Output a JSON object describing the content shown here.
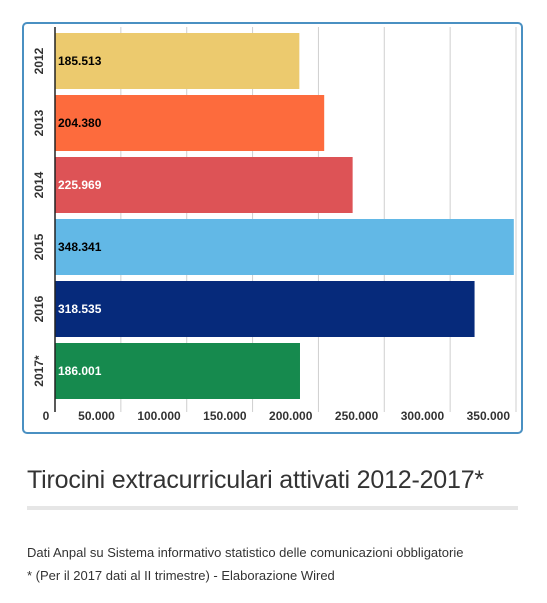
{
  "chart_data": {
    "type": "bar",
    "orientation": "horizontal",
    "categories": [
      "2012",
      "2013",
      "2014",
      "2015",
      "2016",
      "2017*"
    ],
    "values": [
      185513,
      204380,
      225969,
      348341,
      318535,
      186001
    ],
    "value_labels": [
      "185.513",
      "204.380",
      "225.969",
      "348.341",
      "318.535",
      "186.001"
    ],
    "bar_colors": [
      "#ecca6e",
      "#fd6b3d",
      "#dd5356",
      "#62b8e6",
      "#062a7b",
      "#168a4e"
    ],
    "label_colors": [
      "#000000",
      "#000000",
      "#ffffff",
      "#000000",
      "#ffffff",
      "#ffffff"
    ],
    "xlim": [
      0,
      350000
    ],
    "x_ticks": [
      0,
      50000,
      100000,
      150000,
      200000,
      250000,
      300000,
      350000
    ],
    "x_tick_labels": [
      "0",
      "50.000",
      "100.000",
      "150.000",
      "200.000",
      "250.000",
      "300.000",
      "350.000"
    ],
    "grid": true,
    "title": "Tirocini extracurriculari attivati 2012-2017*",
    "xlabel": "",
    "ylabel": ""
  },
  "caption": {
    "line1": "Dati Anpal su Sistema informativo statistico delle comunicazioni obbligatorie",
    "line2": "* (Per il 2017 dati al II trimestre) - Elaborazione Wired"
  }
}
